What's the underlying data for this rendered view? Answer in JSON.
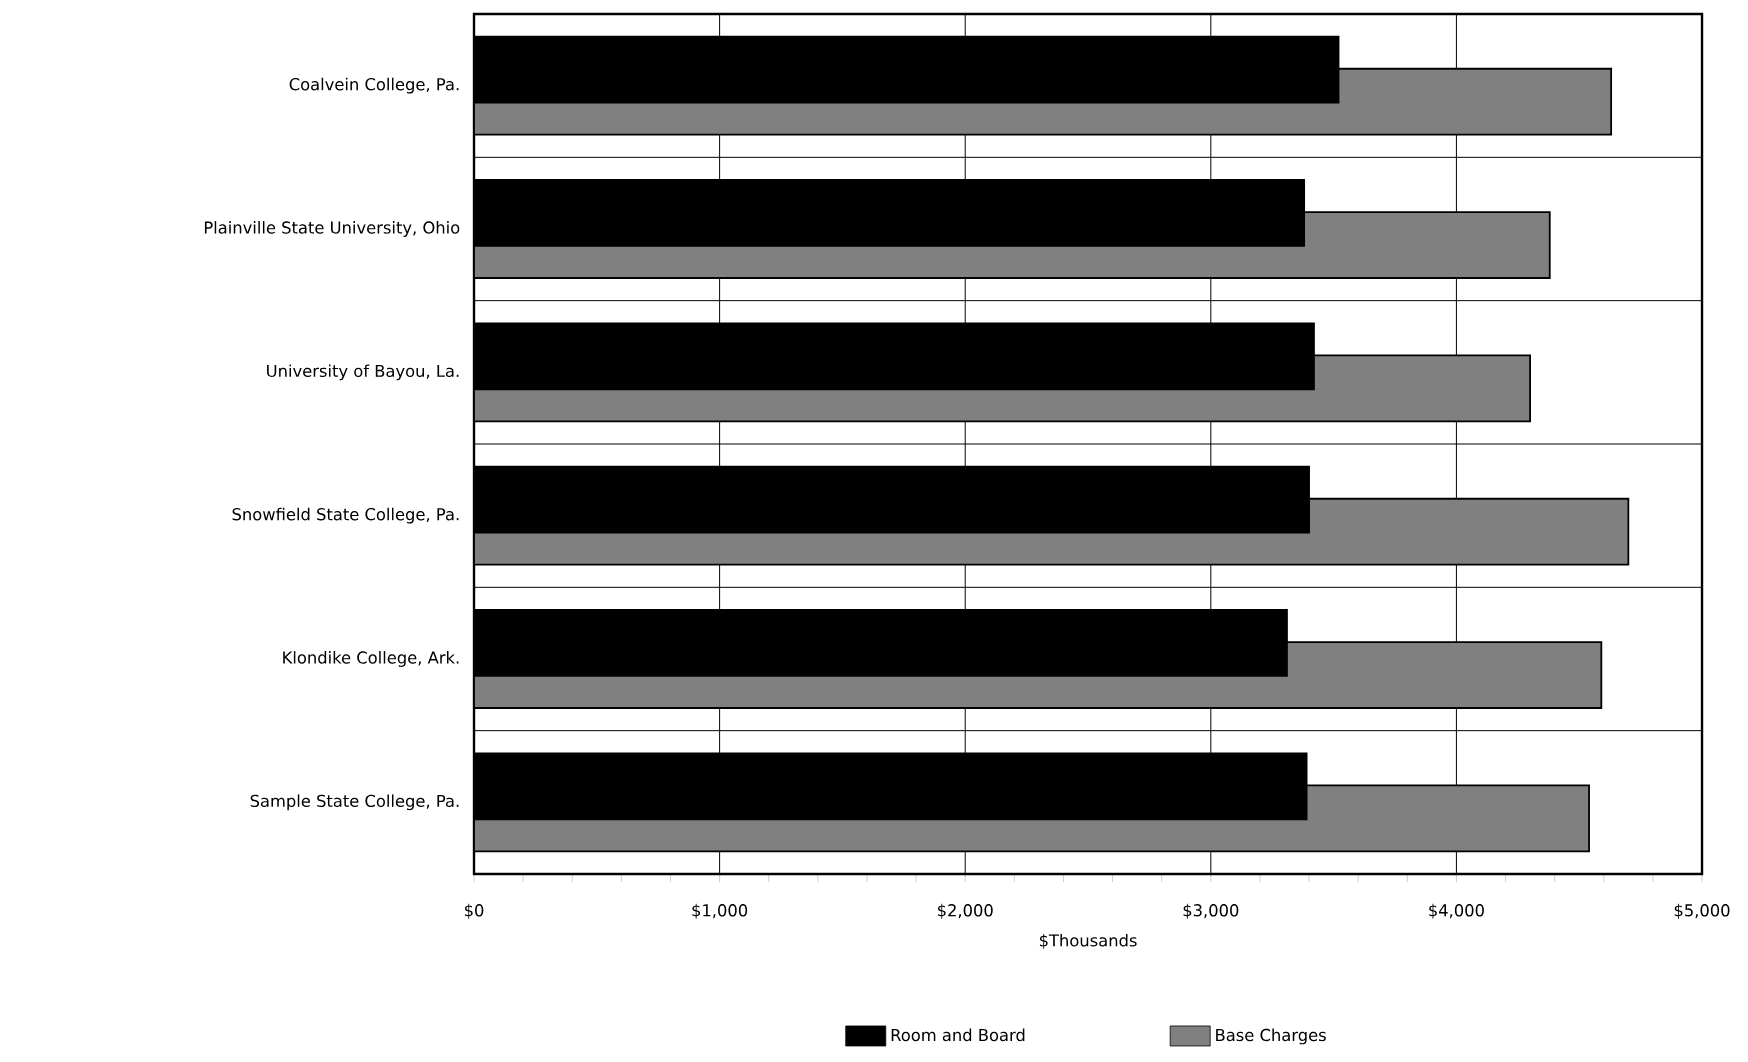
{
  "chart_data": {
    "type": "bar",
    "orientation": "horizontal",
    "xlabel": "$Thousands",
    "categories": [
      "Coalvein College, Pa.",
      "Plainville State University, Ohio",
      "University of Bayou, La.",
      "Snowfield State College, Pa.",
      "Klondike College, Ark.",
      "Sample State College, Pa."
    ],
    "series": [
      {
        "name": "Room and Board",
        "color": "#000000",
        "values": [
          3520,
          3380,
          3420,
          3400,
          3310,
          3390
        ]
      },
      {
        "name": "Base Charges",
        "color": "#808080",
        "values": [
          4630,
          4380,
          4300,
          4700,
          4590,
          4540
        ]
      }
    ],
    "xlim": [
      0,
      5000
    ],
    "xticks": [
      {
        "value": 0,
        "label": "$0"
      },
      {
        "value": 200,
        "label": null
      },
      {
        "value": 400,
        "label": null
      },
      {
        "value": 600,
        "label": null
      },
      {
        "value": 800,
        "label": null
      },
      {
        "value": 1000,
        "label": "$1,000"
      },
      {
        "value": 1200,
        "label": null
      },
      {
        "value": 1400,
        "label": null
      },
      {
        "value": 1600,
        "label": null
      },
      {
        "value": 1800,
        "label": null
      },
      {
        "value": 2000,
        "label": "$2,000"
      },
      {
        "value": 2200,
        "label": null
      },
      {
        "value": 2400,
        "label": null
      },
      {
        "value": 2600,
        "label": null
      },
      {
        "value": 2800,
        "label": null
      },
      {
        "value": 3000,
        "label": "$3,000"
      },
      {
        "value": 3200,
        "label": null
      },
      {
        "value": 3400,
        "label": null
      },
      {
        "value": 3600,
        "label": null
      },
      {
        "value": 3800,
        "label": null
      },
      {
        "value": 4000,
        "label": "$4,000"
      },
      {
        "value": 4200,
        "label": null
      },
      {
        "value": 4400,
        "label": null
      },
      {
        "value": 4600,
        "label": null
      },
      {
        "value": 4800,
        "label": null
      },
      {
        "value": 5000,
        "label": "$5,000"
      }
    ],
    "grid": true,
    "legend": "bottom"
  }
}
